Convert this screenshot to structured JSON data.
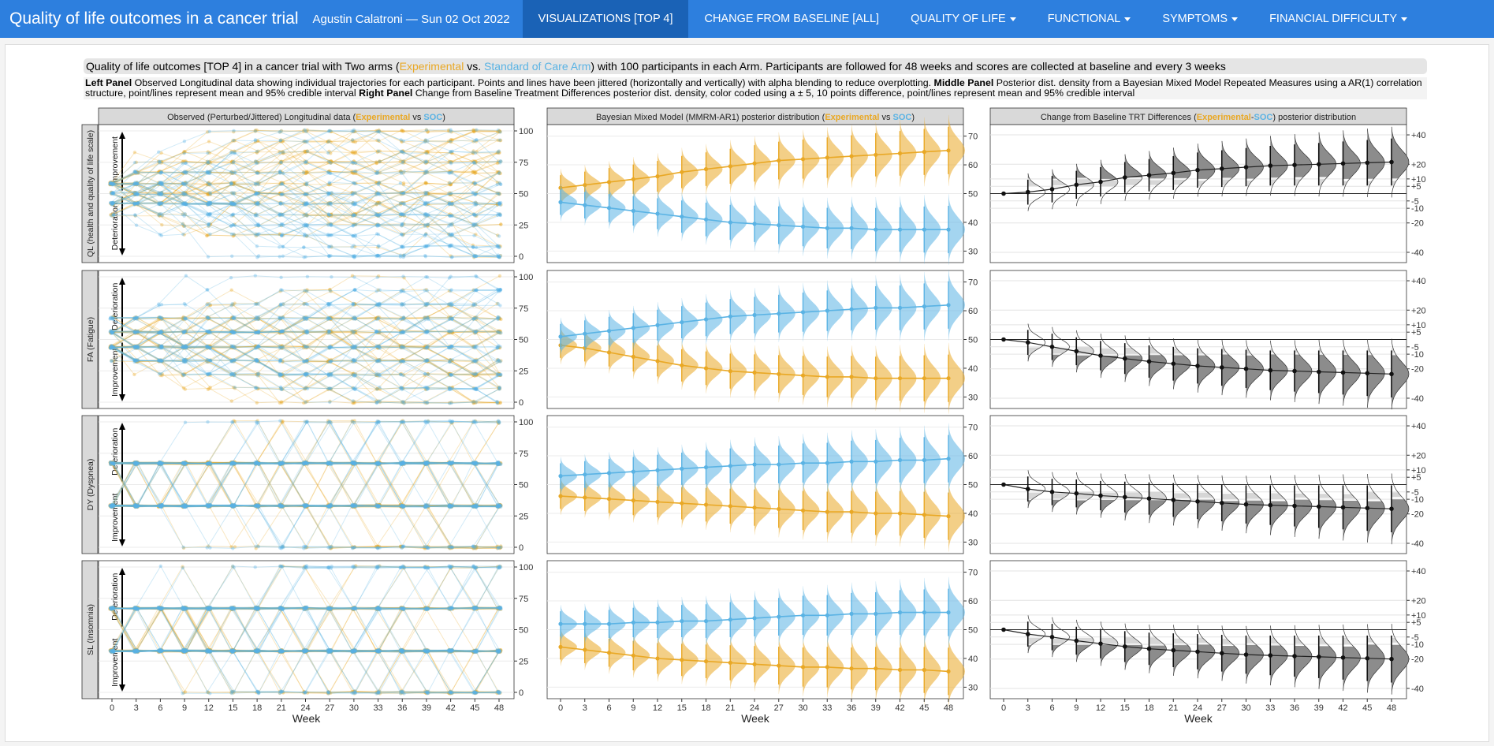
{
  "app": {
    "title": "Quality of life outcomes in a cancer trial",
    "byline": "Agustin Calatroni — Sun 02 Oct 2022"
  },
  "nav": [
    {
      "label": "VISUALIZATIONS [TOP 4]",
      "active": true,
      "dropdown": false
    },
    {
      "label": "CHANGE FROM BASELINE [ALL]",
      "active": false,
      "dropdown": false
    },
    {
      "label": "QUALITY OF LIFE",
      "active": false,
      "dropdown": true
    },
    {
      "label": "FUNCTIONAL",
      "active": false,
      "dropdown": true
    },
    {
      "label": "SYMPTOMS",
      "active": false,
      "dropdown": true
    },
    {
      "label": "FINANCIAL DIFFICULTY",
      "active": false,
      "dropdown": true
    }
  ],
  "info": {
    "pre": "Quality of life outcomes [TOP 4] in a cancer trial with Two arms (",
    "exp": "Experimental",
    "vs": " vs. ",
    "soc": "Standard of Care Arm",
    "post": ") with 100 participants in each Arm. Participants are followed for 48 weeks and scores are collected at baseline and every 3 weeks"
  },
  "description": {
    "left_label": "Left Panel",
    "left_text": " Observed Longitudinal data showing individual trajectories for each participant. Points and lines have been jittered (horizontally and vertically) with alpha blending to reduce overplotting. ",
    "middle_label": "Middle Panel",
    "middle_text": " Posterior dist. density from a Bayesian Mixed Model Repeated Measures using a AR(1) correlation structure, point/lines represent mean and 95% credible interval ",
    "right_label": "Right Panel",
    "right_text": " Change from Baseline Treatment Differences posterior dist. density, color coded using a ± 5, 10 points difference, point/lines represent mean and 95% credible interval"
  },
  "colors": {
    "experimental": "#E9A825",
    "soc": "#5AB3E4",
    "strip": "#d9d9d9",
    "trt": "#555555"
  },
  "chart_data": {
    "type": "faceted-panel-grid",
    "weeks": [
      0,
      3,
      6,
      9,
      12,
      15,
      18,
      21,
      24,
      27,
      30,
      33,
      36,
      39,
      42,
      45,
      48
    ],
    "xlabel": "Week",
    "column_titles": [
      {
        "pre": "Observed (Perturbed/Jittered) Longitudinal data (",
        "a": "Experimental",
        "mid": " vs ",
        "b": "SOC",
        "post": ")"
      },
      {
        "pre": "Bayesian Mixed Model (MMRM-AR1) posterior distribution (",
        "a": "Experimental",
        "mid": " vs ",
        "b": "SOC",
        "post": ")"
      },
      {
        "pre": "Change from Baseline TRT Differences (",
        "a": "Experimental",
        "mid": "-",
        "b": "SOC",
        "post": ") posterior distribution"
      }
    ],
    "observed_axis": {
      "ylim": [
        0,
        100
      ],
      "ticks": [
        0,
        25,
        50,
        75,
        100
      ]
    },
    "posterior_axis": {
      "ylim": [
        26,
        74
      ],
      "ticks": [
        30,
        40,
        50,
        60,
        70
      ]
    },
    "difference_axis": {
      "ylim": [
        -47,
        47
      ],
      "ticks": [
        40,
        20,
        10,
        5,
        -5,
        -10,
        -20,
        -40
      ],
      "tick_labels": [
        "+40",
        "+20",
        "+10",
        "+5",
        "-5",
        "-10",
        "-20",
        "-40"
      ]
    },
    "rows": [
      {
        "strip": "QL (health and quality of life scale)",
        "up_label": "Improvement",
        "down_label": "Deterioration",
        "observed_levels": [
          0,
          8,
          17,
          25,
          33,
          42,
          50,
          58,
          67,
          75,
          83,
          92,
          100
        ],
        "experimental_mean": [
          52,
          53,
          54,
          55,
          56,
          57.5,
          58.5,
          59.5,
          60.5,
          61.5,
          62,
          62.5,
          63,
          63.5,
          64,
          64.5,
          65
        ],
        "soc_mean": [
          47,
          46,
          45,
          44,
          43,
          42,
          41,
          40,
          39.5,
          39,
          38.5,
          38,
          38,
          37.5,
          37.5,
          37.5,
          37.5
        ],
        "difference_mean": [
          0,
          1,
          3,
          6,
          8,
          11,
          12.5,
          14,
          16,
          17,
          18,
          19,
          19.5,
          20,
          20.5,
          21,
          21.5
        ]
      },
      {
        "strip": "FA (Fatigue)",
        "up_label": "Deterioration",
        "down_label": "Improvement",
        "observed_levels": [
          0,
          11,
          22,
          33,
          44,
          56,
          67,
          78,
          89,
          100
        ],
        "experimental_mean": [
          48,
          47,
          45.5,
          44,
          42.5,
          41,
          40,
          39,
          38.5,
          38,
          37.5,
          37,
          37,
          36.5,
          36.5,
          36.5,
          36.5
        ],
        "soc_mean": [
          51,
          52,
          53,
          54,
          55,
          56,
          57,
          58,
          58.5,
          59,
          59.5,
          60,
          60.5,
          61,
          61,
          61.5,
          62
        ],
        "difference_mean": [
          0,
          -2,
          -5,
          -8,
          -11,
          -13,
          -15,
          -16.5,
          -18,
          -19,
          -20,
          -21,
          -21.5,
          -22,
          -22.5,
          -23,
          -23.5
        ]
      },
      {
        "strip": "DY (Dyspnea)",
        "up_label": "Deterioration",
        "down_label": "Improvement",
        "observed_levels": [
          0,
          33,
          67,
          100
        ],
        "experimental_mean": [
          46,
          45.5,
          45,
          44.5,
          44,
          43.5,
          43,
          42.5,
          42,
          41.5,
          41,
          40.5,
          40.5,
          40,
          40,
          39.5,
          39
        ],
        "soc_mean": [
          53,
          53.5,
          54,
          54.5,
          55,
          55.5,
          56,
          56.5,
          57,
          57,
          57.5,
          57.5,
          58,
          58,
          58.5,
          58.5,
          59
        ],
        "difference_mean": [
          0,
          -3,
          -5,
          -6,
          -7.5,
          -8.5,
          -9.5,
          -10.5,
          -11.5,
          -12.5,
          -13.5,
          -14,
          -14.5,
          -15,
          -15.5,
          -16,
          -16.5
        ]
      },
      {
        "strip": "SL (Insomnia)",
        "up_label": "Deterioration",
        "down_label": "Improvement",
        "observed_levels": [
          0,
          33,
          67,
          100
        ],
        "experimental_mean": [
          44,
          43,
          42,
          41,
          40,
          39.5,
          39,
          38.5,
          38,
          37.5,
          37,
          37,
          36.5,
          36.5,
          36,
          36,
          35.5
        ],
        "soc_mean": [
          52,
          52,
          52,
          52.5,
          52.5,
          53,
          53,
          53.5,
          54,
          54.5,
          55,
          55,
          55.5,
          55.5,
          56,
          56,
          56
        ],
        "difference_mean": [
          0,
          -3,
          -5,
          -7.5,
          -9.5,
          -11.5,
          -13,
          -14,
          -15,
          -16,
          -17,
          -17.5,
          -18,
          -18.5,
          -19,
          -19.5,
          -20
        ]
      }
    ]
  }
}
